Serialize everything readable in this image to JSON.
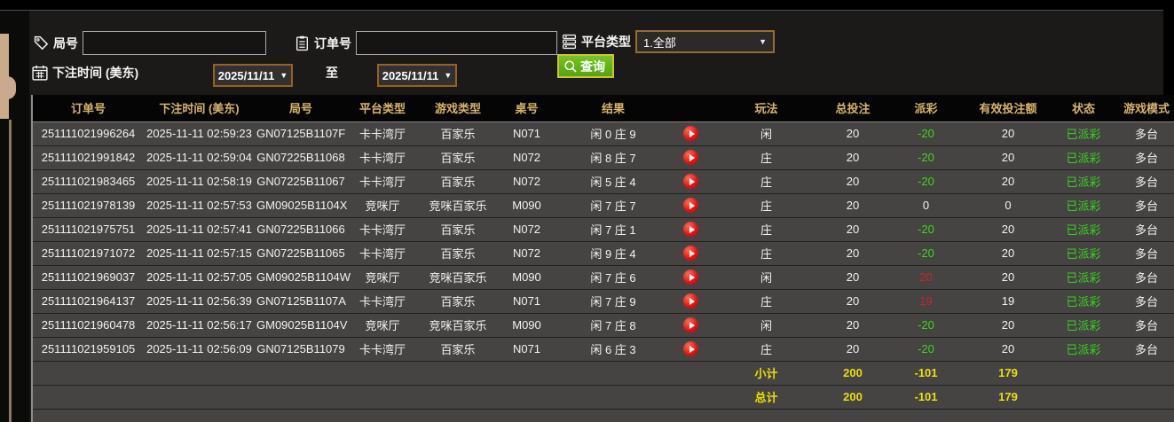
{
  "filters": {
    "round_label": "局号",
    "round_value": "",
    "order_label": "订单号",
    "order_value": "",
    "platform_label": "平台类型",
    "platform_value": "1.全部",
    "bet_time_label": "下注时间 (美东)",
    "date_from": "2025/11/11",
    "to_label": "至",
    "date_to": "2025/11/11",
    "query_label": "查询"
  },
  "colors": {
    "header_gold": "#d7b46a",
    "win_red": "#c82626",
    "loss_green": "#3fd41f",
    "status_green": "#35d41c",
    "totals_yellow": "#e8e000",
    "button_green": "#5fae15",
    "picker_border_brown": "#99601f",
    "accent_tan": "#c9ab8b"
  },
  "table": {
    "headers": [
      "订单号",
      "下注时间 (美东)",
      "局号",
      "平台类型",
      "游戏类型",
      "桌号",
      "结果",
      "",
      "玩法",
      "总投注",
      "派彩",
      "有效投注额",
      "状态",
      "游戏模式"
    ],
    "rows": [
      {
        "order": "251111021996264",
        "time": "2025-11-11 02:59:23",
        "round": "GN07125B1107F",
        "platform": "卡卡湾厅",
        "game": "百家乐",
        "table_no": "N071",
        "result": "闲 0 庄 9",
        "play": "闲",
        "total_bet": "20",
        "payout": "-20",
        "valid_bet": "20",
        "status": "已派彩",
        "mode": "多台"
      },
      {
        "order": "251111021991842",
        "time": "2025-11-11 02:59:04",
        "round": "GN07225B11068",
        "platform": "卡卡湾厅",
        "game": "百家乐",
        "table_no": "N072",
        "result": "闲 8 庄 7",
        "play": "庄",
        "total_bet": "20",
        "payout": "-20",
        "valid_bet": "20",
        "status": "已派彩",
        "mode": "多台"
      },
      {
        "order": "251111021983465",
        "time": "2025-11-11 02:58:19",
        "round": "GN07225B11067",
        "platform": "卡卡湾厅",
        "game": "百家乐",
        "table_no": "N072",
        "result": "闲 5 庄 4",
        "play": "庄",
        "total_bet": "20",
        "payout": "-20",
        "valid_bet": "20",
        "status": "已派彩",
        "mode": "多台"
      },
      {
        "order": "251111021978139",
        "time": "2025-11-11 02:57:53",
        "round": "GM09025B1104X",
        "platform": "竞咪厅",
        "game": "竞咪百家乐",
        "table_no": "M090",
        "result": "闲 7 庄 7",
        "play": "庄",
        "total_bet": "20",
        "payout": "0",
        "valid_bet": "0",
        "status": "已派彩",
        "mode": "多台"
      },
      {
        "order": "251111021975751",
        "time": "2025-11-11 02:57:41",
        "round": "GN07225B11066",
        "platform": "卡卡湾厅",
        "game": "百家乐",
        "table_no": "N072",
        "result": "闲 7 庄 1",
        "play": "庄",
        "total_bet": "20",
        "payout": "-20",
        "valid_bet": "20",
        "status": "已派彩",
        "mode": "多台"
      },
      {
        "order": "251111021971072",
        "time": "2025-11-11 02:57:15",
        "round": "GN07225B11065",
        "platform": "卡卡湾厅",
        "game": "百家乐",
        "table_no": "N072",
        "result": "闲 9 庄 4",
        "play": "庄",
        "total_bet": "20",
        "payout": "-20",
        "valid_bet": "20",
        "status": "已派彩",
        "mode": "多台"
      },
      {
        "order": "251111021969037",
        "time": "2025-11-11 02:57:05",
        "round": "GM09025B1104W",
        "platform": "竞咪厅",
        "game": "竞咪百家乐",
        "table_no": "M090",
        "result": "闲 7 庄 6",
        "play": "闲",
        "total_bet": "20",
        "payout": "20",
        "valid_bet": "20",
        "status": "已派彩",
        "mode": "多台"
      },
      {
        "order": "251111021964137",
        "time": "2025-11-11 02:56:39",
        "round": "GN07125B1107A",
        "platform": "卡卡湾厅",
        "game": "百家乐",
        "table_no": "N071",
        "result": "闲 7 庄 9",
        "play": "庄",
        "total_bet": "20",
        "payout": "19",
        "valid_bet": "19",
        "status": "已派彩",
        "mode": "多台"
      },
      {
        "order": "251111021960478",
        "time": "2025-11-11 02:56:17",
        "round": "GM09025B1104V",
        "platform": "竞咪厅",
        "game": "竞咪百家乐",
        "table_no": "M090",
        "result": "闲 7 庄 8",
        "play": "闲",
        "total_bet": "20",
        "payout": "-20",
        "valid_bet": "20",
        "status": "已派彩",
        "mode": "多台"
      },
      {
        "order": "251111021959105",
        "time": "2025-11-11 02:56:09",
        "round": "GN07125B11079",
        "platform": "卡卡湾厅",
        "game": "百家乐",
        "table_no": "N071",
        "result": "闲 6 庄 3",
        "play": "庄",
        "total_bet": "20",
        "payout": "-20",
        "valid_bet": "20",
        "status": "已派彩",
        "mode": "多台"
      }
    ],
    "subtotal": {
      "label": "小计",
      "total_bet": "200",
      "payout": "-101",
      "valid_bet": "179"
    },
    "total": {
      "label": "总计",
      "total_bet": "200",
      "payout": "-101",
      "valid_bet": "179"
    }
  }
}
